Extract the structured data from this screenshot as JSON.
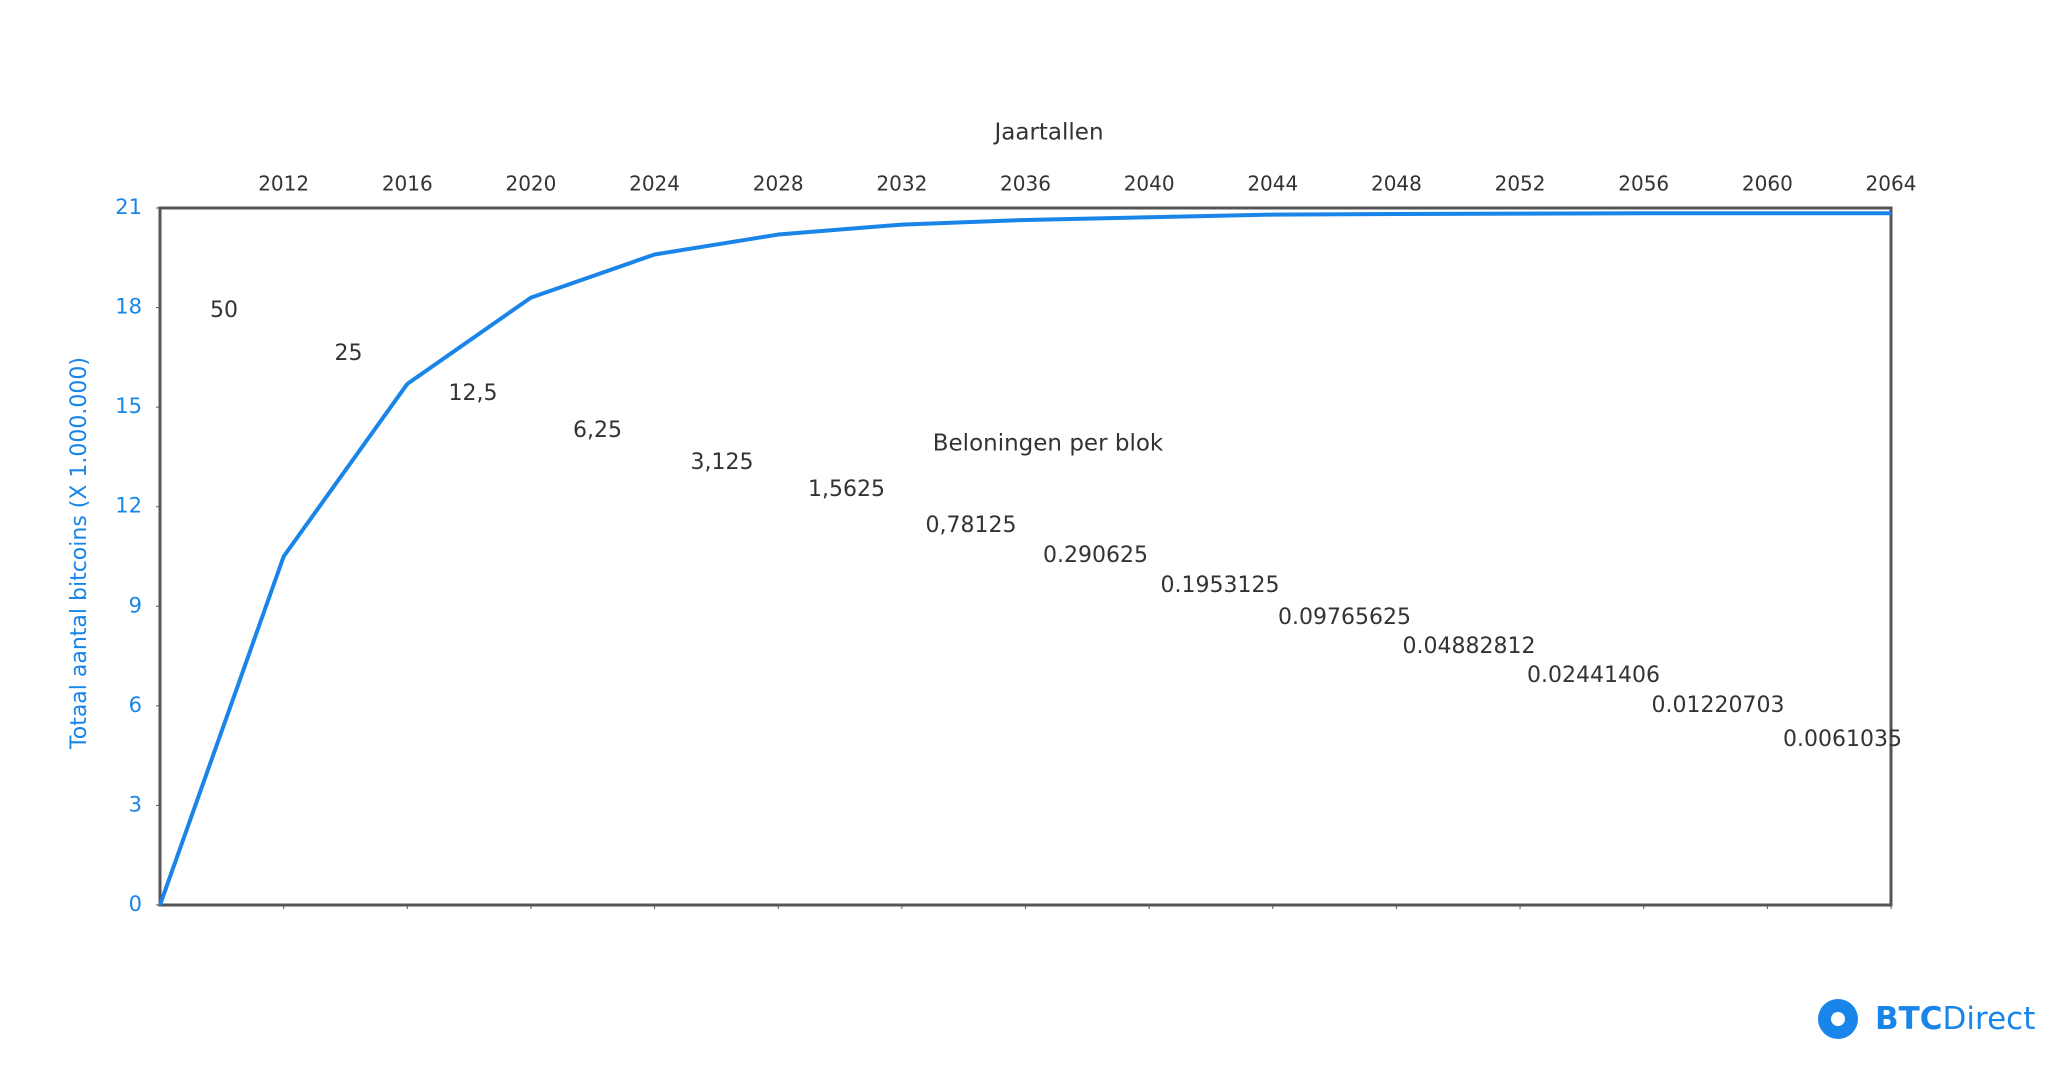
{
  "chart_data": {
    "type": "line",
    "x_label": "Jaartallen",
    "y_label": "Totaal aantal bitcoins (X 1.000.000)",
    "annotation": "Beloningen per blok",
    "x": [
      2008,
      2012,
      2016,
      2020,
      2024,
      2028,
      2032,
      2036,
      2040,
      2044,
      2048,
      2052,
      2056,
      2060,
      2064
    ],
    "series": [
      {
        "color": "#1a85e8",
        "values": [
          0,
          10.5,
          15.7,
          18.3,
          19.6,
          20.2,
          20.5,
          20.64,
          20.72,
          20.8,
          20.82,
          20.83,
          20.84,
          20.84,
          20.84
        ]
      }
    ],
    "reward_labels": [
      "50",
      "25",
      "12,5",
      "6,25",
      "3,125",
      "1,5625",
      "0,78125",
      "0.290625",
      "0.1953125",
      "0.09765625",
      "0.04882812",
      "0.02441406",
      "0.01220703",
      "0.0061035"
    ],
    "xlim": [
      2008,
      2064
    ],
    "xticks": [
      2012,
      2016,
      2020,
      2024,
      2028,
      2032,
      2036,
      2040,
      2044,
      2048,
      2052,
      2056,
      2060,
      2064
    ],
    "ylim": [
      0,
      21
    ],
    "yticks": [
      0,
      3,
      6,
      9,
      12,
      15,
      18,
      21
    ]
  },
  "logo": {
    "bold": "BTC",
    "regular": "Direct"
  }
}
